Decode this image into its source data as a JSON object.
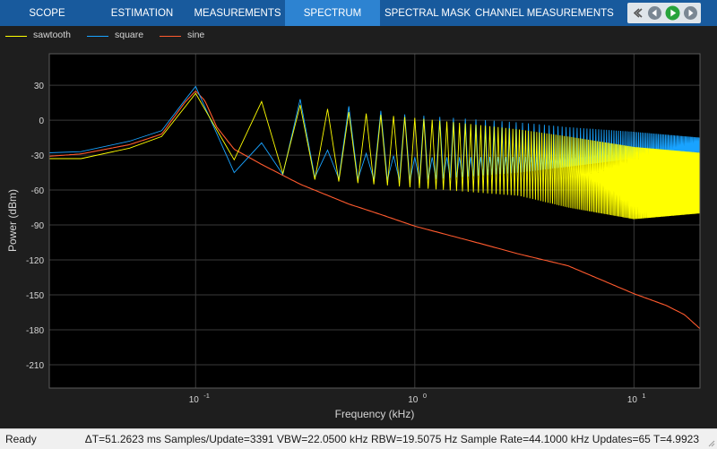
{
  "toolstrip": {
    "tabs": [
      {
        "label": "SCOPE",
        "active": false
      },
      {
        "label": "ESTIMATION",
        "active": false
      },
      {
        "label": "MEASUREMENTS",
        "active": false
      },
      {
        "label": "SPECTRUM",
        "active": true
      },
      {
        "label": "SPECTRAL MASK",
        "active": false
      },
      {
        "label": "CHANNEL MEASUREMENTS",
        "active": false
      }
    ],
    "controls": [
      {
        "name": "collapse-icon"
      },
      {
        "name": "step-back-icon"
      },
      {
        "name": "run-icon"
      },
      {
        "name": "step-forward-icon"
      }
    ]
  },
  "colors": {
    "toolstrip": "#185a9d",
    "active_tab": "#2d83d1",
    "plot_bg": "#000000",
    "grid": "#3a3a3a",
    "axis_text": "#d6d6d6",
    "sawtooth": "#ffff00",
    "square": "#19a3ff",
    "sine": "#ff5a2e"
  },
  "legend": [
    {
      "label": "sawtooth",
      "color": "#ffff00"
    },
    {
      "label": "square",
      "color": "#19a3ff"
    },
    {
      "label": "sine",
      "color": "#ff5a2e"
    }
  ],
  "chart_data": {
    "type": "line",
    "title": "",
    "xlabel": "Frequency (kHz)",
    "ylabel": "Power (dBm)",
    "xscale": "log",
    "xlim": [
      0.0215,
      20
    ],
    "ylim": [
      -230,
      57
    ],
    "xticks": [
      0.1,
      1,
      10
    ],
    "xtick_labels": [
      "10",
      "10",
      "10"
    ],
    "xtick_exponents": [
      "-1",
      "0",
      "1"
    ],
    "yticks": [
      30,
      0,
      -30,
      -60,
      -90,
      -120,
      -150,
      -180,
      -210
    ],
    "ytick_labels": [
      "30",
      "0",
      "-30",
      "-60",
      "-90",
      "-120",
      "-150",
      "-180",
      "-210"
    ],
    "grid": true,
    "legend_position": "top",
    "fundamental_khz": 0.1,
    "series": [
      {
        "name": "sine",
        "color": "#ff5a2e",
        "points": [
          [
            0.0215,
            -31
          ],
          [
            0.03,
            -29
          ],
          [
            0.05,
            -21
          ],
          [
            0.07,
            -12
          ],
          [
            0.09,
            16
          ],
          [
            0.1,
            25
          ],
          [
            0.11,
            17
          ],
          [
            0.125,
            -6
          ],
          [
            0.15,
            -25
          ],
          [
            0.2,
            -38
          ],
          [
            0.3,
            -55
          ],
          [
            0.5,
            -72
          ],
          [
            0.7,
            -81
          ],
          [
            1,
            -91
          ],
          [
            2,
            -106
          ],
          [
            3,
            -115
          ],
          [
            5,
            -125
          ],
          [
            10,
            -149
          ],
          [
            14,
            -159
          ],
          [
            17,
            -167
          ],
          [
            20,
            -179
          ]
        ]
      },
      {
        "name": "square",
        "color": "#19a3ff",
        "peaks_at_odd_harmonics": true,
        "harmonic_peaks": [
          [
            0.1,
            29
          ],
          [
            0.3,
            18
          ],
          [
            0.5,
            12
          ],
          [
            0.7,
            8
          ],
          [
            0.9,
            5
          ],
          [
            1.5,
            2
          ],
          [
            3,
            -2
          ],
          [
            5,
            -6
          ],
          [
            10,
            -10
          ],
          [
            20,
            -15
          ]
        ],
        "valleys": [
          [
            0.2,
            -45
          ],
          [
            0.4,
            -50
          ],
          [
            1,
            -52
          ],
          [
            3,
            -45
          ],
          [
            5,
            -40
          ],
          [
            10,
            -33
          ],
          [
            20,
            -25
          ]
        ],
        "low_freq": [
          [
            0.0215,
            -28
          ],
          [
            0.03,
            -27
          ],
          [
            0.05,
            -18
          ],
          [
            0.07,
            -9
          ],
          [
            0.09,
            18
          ]
        ]
      },
      {
        "name": "sawtooth",
        "color": "#ffff00",
        "peaks_at_all_harmonics": true,
        "harmonic_peaks": [
          [
            0.1,
            23
          ],
          [
            0.2,
            16
          ],
          [
            0.3,
            13
          ],
          [
            0.5,
            7
          ],
          [
            1,
            2
          ],
          [
            3,
            -8
          ],
          [
            5,
            -14
          ],
          [
            10,
            -23
          ],
          [
            20,
            -28
          ]
        ],
        "valleys": [
          [
            0.15,
            -34
          ],
          [
            0.3,
            -50
          ],
          [
            1,
            -58
          ],
          [
            3,
            -65
          ],
          [
            5,
            -75
          ],
          [
            10,
            -85
          ],
          [
            20,
            -80
          ]
        ],
        "low_freq": [
          [
            0.0215,
            -33
          ],
          [
            0.03,
            -33
          ],
          [
            0.05,
            -24
          ],
          [
            0.07,
            -14
          ],
          [
            0.09,
            12
          ]
        ]
      }
    ]
  },
  "status": {
    "ready": "Ready",
    "info": "ΔT=51.2623 ms  Samples/Update=3391  VBW=22.0500 kHz  RBW=19.5075 Hz  Sample Rate=44.1000 kHz  Updates=65  T=4.9923"
  }
}
